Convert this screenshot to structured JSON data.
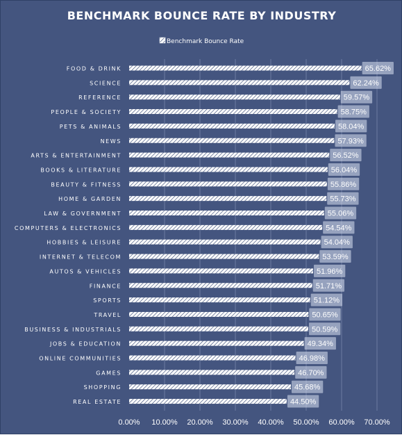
{
  "chart_data": {
    "type": "bar",
    "orientation": "horizontal",
    "title": "BENCHMARK BOUNCE RATE BY INDUSTRY",
    "xlabel": "",
    "ylabel": "",
    "legend_position": "top",
    "grid": true,
    "xlim": [
      0,
      70
    ],
    "x_ticks": [
      0,
      10,
      20,
      30,
      40,
      50,
      60,
      70
    ],
    "x_tick_labels": [
      "0.00%",
      "10.00%",
      "20.00%",
      "30.00%",
      "40.00%",
      "50.00%",
      "60.00%",
      "70.00%"
    ],
    "bar_color": "#ffffff",
    "background_color": "#44557f",
    "categories": [
      "FOOD & DRINK",
      "SCIENCE",
      "REFERENCE",
      "PEOPLE & SOCIETY",
      "PETS & ANIMALS",
      "NEWS",
      "ARTS & ENTERTAINMENT",
      "BOOKS & LITERATURE",
      "BEAUTY & FITNESS",
      "HOME & GARDEN",
      "LAW & GOVERNMENT",
      "COMPUTERS & ELECTRONICS",
      "HOBBIES & LEISURE",
      "INTERNET & TELECOM",
      "AUTOS & VEHICLES",
      "FINANCE",
      "SPORTS",
      "TRAVEL",
      "BUSINESS & INDUSTRIALS",
      "JOBS & EDUCATION",
      "ONLINE COMMUNITIES",
      "GAMES",
      "SHOPPING",
      "REAL ESTATE"
    ],
    "series": [
      {
        "name": "Benchmark Bounce Rate",
        "values": [
          65.62,
          62.24,
          59.57,
          58.75,
          58.04,
          57.93,
          56.52,
          56.04,
          55.86,
          55.73,
          55.06,
          54.54,
          54.04,
          53.59,
          51.96,
          51.71,
          51.12,
          50.65,
          50.59,
          49.34,
          46.98,
          46.7,
          45.68,
          44.5
        ],
        "labels": [
          "65.62%",
          "62.24%",
          "59.57%",
          "58.75%",
          "58.04%",
          "57.93%",
          "56.52%",
          "56.04%",
          "55.86%",
          "55.73%",
          "55.06%",
          "54.54%",
          "54.04%",
          "53.59%",
          "51.96%",
          "51.71%",
          "51.12%",
          "50.65%",
          "50.59%",
          "49.34%",
          "46.98%",
          "46.70%",
          "45.68%",
          "44.50%"
        ]
      }
    ]
  }
}
